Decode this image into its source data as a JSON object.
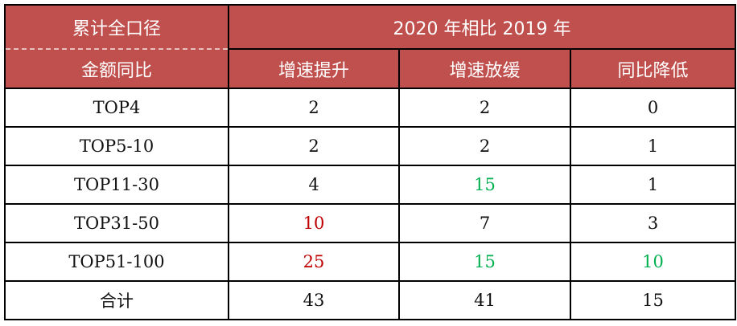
{
  "header": {
    "row_label_top": "累计全口径",
    "row_label_bottom": "金额同比",
    "group": "2020 年相比 2019 年",
    "columns": [
      "增速提升",
      "增速放缓",
      "同比降低"
    ]
  },
  "colors": {
    "header_bg": "#c0504d",
    "highlight_red": "#c00000",
    "highlight_green": "#00b050"
  },
  "rows": [
    {
      "label": "TOP4",
      "values": [
        "2",
        "2",
        "0"
      ],
      "colors": [
        "",
        "",
        ""
      ]
    },
    {
      "label": "TOP5-10",
      "values": [
        "2",
        "2",
        "1"
      ],
      "colors": [
        "",
        "",
        ""
      ]
    },
    {
      "label": "TOP11-30",
      "values": [
        "4",
        "15",
        "1"
      ],
      "colors": [
        "",
        "green",
        ""
      ]
    },
    {
      "label": "TOP31-50",
      "values": [
        "10",
        "7",
        "3"
      ],
      "colors": [
        "red",
        "",
        ""
      ]
    },
    {
      "label": "TOP51-100",
      "values": [
        "25",
        "15",
        "10"
      ],
      "colors": [
        "red",
        "green",
        "green"
      ]
    },
    {
      "label": "合计",
      "values": [
        "43",
        "41",
        "15"
      ],
      "colors": [
        "",
        "",
        ""
      ]
    }
  ]
}
